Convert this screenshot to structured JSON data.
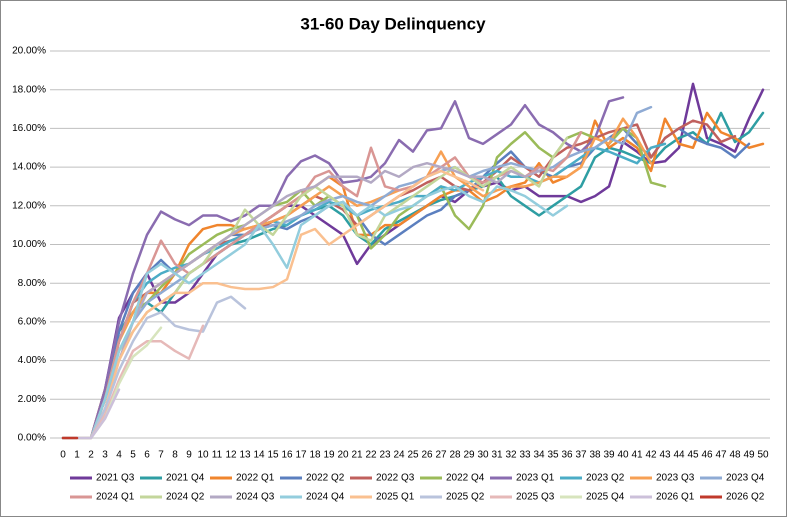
{
  "chart_data": {
    "type": "line",
    "title": "31-60 Day Delinquency",
    "x": [
      0,
      1,
      2,
      3,
      4,
      5,
      6,
      7,
      8,
      9,
      10,
      11,
      12,
      13,
      14,
      15,
      16,
      17,
      18,
      19,
      20,
      21,
      22,
      23,
      24,
      25,
      26,
      27,
      28,
      29,
      30,
      31,
      32,
      33,
      34,
      35,
      36,
      37,
      38,
      39,
      40,
      41,
      42,
      43,
      44,
      45,
      46,
      47,
      48,
      49,
      50
    ],
    "xlim": [
      0,
      50
    ],
    "xticks": [
      0,
      1,
      2,
      3,
      4,
      5,
      6,
      7,
      8,
      9,
      10,
      11,
      12,
      13,
      14,
      15,
      16,
      17,
      18,
      19,
      20,
      21,
      22,
      23,
      24,
      25,
      26,
      27,
      28,
      29,
      30,
      31,
      32,
      33,
      34,
      35,
      36,
      37,
      38,
      39,
      40,
      41,
      42,
      43,
      44,
      45,
      46,
      47,
      48,
      49,
      50
    ],
    "ylim": [
      0,
      20
    ],
    "yticks": [
      {
        "value": 0,
        "label": "0.00%"
      },
      {
        "value": 2,
        "label": "2.00%"
      },
      {
        "value": 4,
        "label": "4.00%"
      },
      {
        "value": 6,
        "label": "6.00%"
      },
      {
        "value": 8,
        "label": "8.00%"
      },
      {
        "value": 10,
        "label": "10.00%"
      },
      {
        "value": 12,
        "label": "12.00%"
      },
      {
        "value": 14,
        "label": "14.00%"
      },
      {
        "value": 16,
        "label": "16.00%"
      },
      {
        "value": 18,
        "label": "18.00%"
      },
      {
        "value": 20,
        "label": "20.00%"
      }
    ],
    "grid": true,
    "legend": "bottom",
    "series": [
      {
        "name": "2021 Q3",
        "color": "#6f3a9a",
        "values": [
          0,
          0,
          0,
          2.5,
          6.2,
          7.5,
          8.5,
          7,
          7,
          7.5,
          8.5,
          9.5,
          10,
          10.5,
          11,
          11.5,
          12,
          12,
          11.5,
          11,
          10.5,
          9,
          10,
          10.5,
          11,
          11.5,
          12,
          12.5,
          12.2,
          12.8,
          13,
          13.2,
          12.8,
          13,
          12.5,
          12.5,
          12.5,
          12.2,
          12.5,
          13,
          15.3,
          14.8,
          14.2,
          14.3,
          15,
          18.3,
          15.5,
          15.2,
          14.8,
          16.5,
          18
        ]
      },
      {
        "name": "2021 Q4",
        "color": "#2e9ea3",
        "values": [
          0,
          0,
          0,
          2,
          5.5,
          6.5,
          7,
          6.5,
          7.5,
          8.5,
          9,
          9.5,
          10,
          10.2,
          10.5,
          10.8,
          11,
          11.5,
          11.8,
          12,
          11.5,
          10.5,
          10,
          10.8,
          11.2,
          11.6,
          12,
          12.3,
          12.5,
          12.8,
          13,
          13.5,
          12.5,
          12,
          11.5,
          12,
          12.5,
          13,
          14.5,
          15,
          14.8,
          14.5,
          14.2,
          15,
          15.5,
          15.8,
          15.2,
          16.8,
          15.3,
          15.8,
          16.8
        ]
      },
      {
        "name": "2022 Q1",
        "color": "#f0852d",
        "values": [
          0,
          0,
          0,
          2.5,
          5,
          6.5,
          7.5,
          7.5,
          8.5,
          10,
          10.8,
          11,
          11,
          10.8,
          11,
          11.5,
          12,
          12.5,
          13,
          13.5,
          13,
          10.5,
          10.5,
          11,
          11,
          11.5,
          12,
          12.5,
          12.8,
          12.8,
          12.2,
          12.5,
          13,
          13.2,
          14.2,
          13.2,
          13.5,
          14,
          16.4,
          15,
          15.5,
          15,
          13.8,
          16.5,
          15.2,
          15,
          16.8,
          15.8,
          15.5,
          15,
          15.2
        ]
      },
      {
        "name": "2022 Q2",
        "color": "#5b7fbf",
        "values": [
          0,
          0,
          0,
          2,
          5.5,
          7.5,
          8.5,
          9.2,
          8.5,
          9,
          9.5,
          10,
          10.5,
          10.5,
          10.8,
          11,
          10.8,
          11.2,
          11.5,
          12,
          12.2,
          11.5,
          10.5,
          10,
          10.5,
          11,
          11.5,
          11.8,
          12.5,
          12.8,
          13.5,
          14.2,
          14.8,
          14,
          13.8,
          13.5,
          14,
          14.2,
          15,
          15.5,
          16,
          15.2,
          14.5,
          15.5,
          16,
          15.5,
          15.2,
          15,
          14.5,
          15.2,
          null
        ]
      },
      {
        "name": "2022 Q3",
        "color": "#c0605d",
        "values": [
          0,
          0,
          0,
          2,
          5,
          7,
          7.5,
          8,
          8.5,
          9,
          9.5,
          10,
          10.2,
          10.5,
          10.8,
          11.2,
          11.5,
          12,
          12.5,
          12.2,
          11.8,
          11,
          11.5,
          12,
          12.5,
          12.8,
          13.2,
          13.5,
          13,
          12.8,
          13.2,
          13.8,
          14.5,
          14,
          13.5,
          14.5,
          15,
          15.2,
          15.5,
          15.8,
          16,
          16.2,
          14.5,
          15.5,
          16,
          16.4,
          16.2,
          15.3,
          15.6,
          null,
          null
        ]
      },
      {
        "name": "2022 Q4",
        "color": "#9bbb59",
        "values": [
          0,
          0,
          0,
          2,
          5,
          6.5,
          7,
          7.8,
          8.5,
          9.5,
          10,
          10.5,
          10.8,
          11,
          11.5,
          12,
          12.2,
          12.8,
          12,
          12.5,
          12,
          11.5,
          9.8,
          10.5,
          11.5,
          12,
          12.5,
          13,
          11.5,
          10.8,
          12,
          14.5,
          15.2,
          15.8,
          15,
          14.5,
          15.5,
          15.8,
          15.5,
          15.2,
          16,
          15.5,
          13.2,
          13,
          null,
          null,
          null,
          null,
          null,
          null,
          null
        ]
      },
      {
        "name": "2023 Q1",
        "color": "#8a6cb0",
        "values": [
          0,
          0,
          0,
          2.5,
          6,
          8.5,
          10.5,
          11.7,
          11.3,
          11,
          11.5,
          11.5,
          11.2,
          11.5,
          12,
          12,
          13.5,
          14.3,
          14.6,
          14.2,
          13.2,
          13.3,
          13.5,
          14.2,
          15.4,
          14.8,
          15.9,
          16,
          17.4,
          15.5,
          15.2,
          15.7,
          16.2,
          17.2,
          16.2,
          15.8,
          15.2,
          14.8,
          15.5,
          17.4,
          17.6,
          null,
          null,
          null,
          null,
          null,
          null,
          null,
          null,
          null,
          null
        ]
      },
      {
        "name": "2023 Q2",
        "color": "#4bacc6",
        "values": [
          0,
          0,
          0,
          2,
          5,
          7,
          8,
          8.5,
          8.8,
          9,
          9.5,
          9.8,
          10.2,
          10.5,
          11,
          11.2,
          11,
          11.5,
          11.8,
          12.2,
          12,
          11.5,
          11.8,
          12,
          12.2,
          12.5,
          12.5,
          13,
          12.8,
          13.2,
          13.5,
          13.8,
          13.5,
          13.5,
          13.2,
          13.5,
          14,
          14.5,
          15,
          14.8,
          14.5,
          14.2,
          15,
          15.2,
          null,
          null,
          null,
          null,
          null,
          null,
          null
        ]
      },
      {
        "name": "2023 Q3",
        "color": "#f7a054",
        "values": [
          0,
          0,
          0,
          2,
          5,
          6.5,
          7.5,
          8,
          8.5,
          9,
          9.5,
          10,
          10.5,
          10.8,
          11,
          11.2,
          11.5,
          12,
          12.5,
          13,
          12.5,
          12,
          12.2,
          12.5,
          12.8,
          13,
          13.5,
          14.8,
          13.5,
          13,
          12.5,
          12.8,
          13,
          13,
          13.2,
          13.5,
          13.5,
          14,
          15.5,
          15.2,
          16.5,
          15.5,
          14.2,
          null,
          null,
          null,
          null,
          null,
          null,
          null,
          null
        ]
      },
      {
        "name": "2023 Q4",
        "color": "#8fabd4",
        "values": [
          0,
          0,
          0,
          2,
          4.5,
          6,
          7,
          7.5,
          8,
          8.5,
          9,
          9.5,
          10,
          10.5,
          10.8,
          11,
          11.2,
          11.5,
          12,
          12.3,
          12.5,
          12.2,
          12,
          12.5,
          13,
          13.2,
          13.5,
          13.8,
          14,
          13.5,
          13.8,
          14,
          14.2,
          14,
          13.8,
          14,
          14.5,
          14.8,
          15,
          15.5,
          15.2,
          16.8,
          17.1,
          null,
          null,
          null,
          null,
          null,
          null,
          null,
          null
        ]
      },
      {
        "name": "2024 Q1",
        "color": "#d99694",
        "values": [
          0,
          0,
          0,
          2,
          5,
          7,
          8.5,
          10.2,
          9,
          8.5,
          9,
          9.5,
          10,
          10.5,
          11,
          11.5,
          12,
          12.5,
          13.5,
          13.8,
          13,
          12.5,
          15,
          13,
          12.8,
          13,
          13.5,
          14,
          14.5,
          13.5,
          13.2,
          13.5,
          13.8,
          13.5,
          14,
          13.8,
          14.5,
          15.8,
          null,
          null,
          null,
          null,
          null,
          null,
          null,
          null,
          null,
          null,
          null,
          null,
          null
        ]
      },
      {
        "name": "2024 Q2",
        "color": "#c3d69b",
        "values": [
          0,
          0,
          0,
          2,
          4.5,
          5.5,
          6.5,
          7,
          7.5,
          8.5,
          9,
          10,
          10.5,
          11.8,
          11,
          10.5,
          11.5,
          12.5,
          13,
          12.5,
          12,
          10.5,
          10.2,
          11.5,
          12,
          12.5,
          13,
          13.5,
          14,
          13.5,
          13,
          13.5,
          14,
          13.5,
          13,
          14.5,
          15.5,
          null,
          null,
          null,
          null,
          null,
          null,
          null,
          null,
          null,
          null,
          null,
          null,
          null,
          null
        ]
      },
      {
        "name": "2024 Q3",
        "color": "#b3a9c4",
        "values": [
          0,
          0,
          0,
          2,
          4,
          6,
          7.5,
          8,
          8.5,
          9,
          9.5,
          10,
          10.5,
          11,
          11.5,
          12,
          12.5,
          12.8,
          13,
          13.5,
          13.5,
          13.5,
          13.2,
          13.8,
          13.5,
          14,
          14.2,
          14,
          13.8,
          13.5,
          13.5,
          13.2,
          13.8,
          13.5,
          13.8,
          null,
          null,
          null,
          null,
          null,
          null,
          null,
          null,
          null,
          null,
          null,
          null,
          null,
          null,
          null,
          null
        ]
      },
      {
        "name": "2024 Q4",
        "color": "#93cddd",
        "values": [
          0,
          0,
          0,
          2,
          4.5,
          6,
          8.5,
          9,
          8.5,
          8,
          8.5,
          9,
          9.5,
          10,
          11,
          10,
          8.8,
          11,
          11.5,
          12,
          12.2,
          11.5,
          12,
          11.5,
          11.8,
          12,
          12.5,
          12.8,
          13,
          12.5,
          12.2,
          13,
          12.8,
          12.5,
          12,
          11.5,
          12,
          null,
          null,
          null,
          null,
          null,
          null,
          null,
          null,
          null,
          null,
          null,
          null,
          null,
          null
        ]
      },
      {
        "name": "2025 Q1",
        "color": "#fac090",
        "values": [
          0,
          0,
          0,
          1.5,
          4,
          5.5,
          6.5,
          7,
          7.5,
          7.5,
          8,
          8,
          7.8,
          7.7,
          7.7,
          7.8,
          8.2,
          10.5,
          10.8,
          10,
          10.5,
          11,
          11.5,
          12,
          12.5,
          13,
          13.5,
          13.8,
          13.5,
          13.2,
          12.8,
          null,
          null,
          null,
          null,
          null,
          null,
          null,
          null,
          null,
          null,
          null,
          null,
          null,
          null,
          null,
          null,
          null,
          null,
          null,
          null
        ]
      },
      {
        "name": "2025 Q2",
        "color": "#b9c3dc",
        "values": [
          0,
          0,
          0,
          1.5,
          3.5,
          5,
          6.2,
          6.5,
          5.8,
          5.6,
          5.5,
          7,
          7.3,
          6.7,
          null,
          null,
          null,
          null,
          null,
          null,
          null,
          null,
          null,
          null,
          null,
          null,
          null,
          null,
          null,
          null,
          null,
          null,
          null,
          null,
          null,
          null,
          null,
          null,
          null,
          null,
          null,
          null,
          null,
          null,
          null,
          null,
          null,
          null,
          null,
          null,
          null
        ]
      },
      {
        "name": "2025 Q3",
        "color": "#e6b9b8",
        "values": [
          0,
          0,
          0,
          1.2,
          3,
          4.5,
          5,
          5,
          4.5,
          4.1,
          5.8,
          null,
          null,
          null,
          null,
          null,
          null,
          null,
          null,
          null,
          null,
          null,
          null,
          null,
          null,
          null,
          null,
          null,
          null,
          null,
          null,
          null,
          null,
          null,
          null,
          null,
          null,
          null,
          null,
          null,
          null,
          null,
          null,
          null,
          null,
          null,
          null,
          null,
          null,
          null,
          null
        ]
      },
      {
        "name": "2025 Q4",
        "color": "#d7e4bd",
        "values": [
          0,
          0,
          0,
          1,
          2.8,
          4.2,
          4.8,
          5.7,
          null,
          null,
          null,
          null,
          null,
          null,
          null,
          null,
          null,
          null,
          null,
          null,
          null,
          null,
          null,
          null,
          null,
          null,
          null,
          null,
          null,
          null,
          null,
          null,
          null,
          null,
          null,
          null,
          null,
          null,
          null,
          null,
          null,
          null,
          null,
          null,
          null,
          null,
          null,
          null,
          null,
          null,
          null
        ]
      },
      {
        "name": "2026 Q1",
        "color": "#ccc0da",
        "values": [
          0,
          0,
          0,
          1,
          2.5,
          null,
          null,
          null,
          null,
          null,
          null,
          null,
          null,
          null,
          null,
          null,
          null,
          null,
          null,
          null,
          null,
          null,
          null,
          null,
          null,
          null,
          null,
          null,
          null,
          null,
          null,
          null,
          null,
          null,
          null,
          null,
          null,
          null,
          null,
          null,
          null,
          null,
          null,
          null,
          null,
          null,
          null,
          null,
          null,
          null,
          null
        ]
      },
      {
        "name": "2026 Q2",
        "color": "#c0392b",
        "values": [
          0,
          0,
          null,
          null,
          null,
          null,
          null,
          null,
          null,
          null,
          null,
          null,
          null,
          null,
          null,
          null,
          null,
          null,
          null,
          null,
          null,
          null,
          null,
          null,
          null,
          null,
          null,
          null,
          null,
          null,
          null,
          null,
          null,
          null,
          null,
          null,
          null,
          null,
          null,
          null,
          null,
          null,
          null,
          null,
          null,
          null,
          null,
          null,
          null,
          null,
          null
        ]
      }
    ]
  }
}
